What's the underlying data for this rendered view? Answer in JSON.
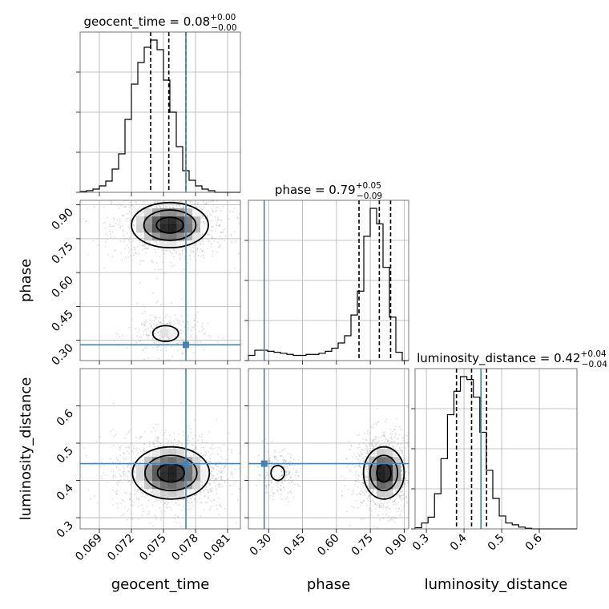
{
  "chart_data": {
    "type": "corner",
    "parameters": [
      "geocent_time",
      "phase",
      "luminosity_distance"
    ],
    "truths": {
      "geocent_time": 0.0771,
      "phase": 0.28,
      "luminosity_distance": 0.445
    },
    "ranges": {
      "geocent_time": [
        0.0672,
        0.0822
      ],
      "phase": [
        0.21,
        0.92
      ],
      "luminosity_distance": [
        0.27,
        0.7
      ]
    },
    "ticks": {
      "geocent_time": [
        0.069,
        0.072,
        0.075,
        0.078,
        0.081
      ],
      "phase": [
        0.3,
        0.45,
        0.6,
        0.75,
        0.9
      ],
      "luminosity_distance": [
        0.3,
        0.4,
        0.5,
        0.6
      ]
    },
    "tick_labels": {
      "geocent_time": [
        "0.069",
        "0.072",
        "0.075",
        "0.078",
        "0.081"
      ],
      "phase": [
        "0.30",
        "0.45",
        "0.60",
        "0.75",
        "0.90"
      ],
      "luminosity_distance_x": [
        "0.3",
        "0.4",
        "0.5",
        "0.6"
      ],
      "luminosity_distance_y": [
        "0.3",
        "0.4",
        "0.5",
        "0.6"
      ]
    },
    "axis_labels": {
      "x": [
        "geocent_time",
        "phase",
        "luminosity_distance"
      ],
      "y": [
        "phase",
        "luminosity_distance"
      ]
    },
    "titles": [
      {
        "param": "geocent_time",
        "prefix": "geocent_time = 0.08",
        "plus": "+0.00",
        "minus": "−0.00"
      },
      {
        "param": "phase",
        "prefix": "phase = 0.79",
        "plus": "+0.05",
        "minus": "−0.09"
      },
      {
        "param": "luminosity_distance",
        "prefix": "luminosity_distance = 0.42",
        "plus": "+0.04",
        "minus": "−0.04"
      }
    ],
    "quantiles": {
      "geocent_time": [
        0.0738,
        0.0755,
        0.0771
      ],
      "phase": [
        0.7,
        0.79,
        0.84
      ],
      "luminosity_distance": [
        0.38,
        0.42,
        0.46
      ]
    },
    "histograms": {
      "geocent_time": {
        "edges": [
          0.0672,
          0.0678,
          0.0684,
          0.069,
          0.0696,
          0.0702,
          0.0708,
          0.0714,
          0.072,
          0.0726,
          0.0732,
          0.0738,
          0.0744,
          0.075,
          0.0756,
          0.0762,
          0.0768,
          0.0774,
          0.078,
          0.0786,
          0.0792,
          0.0798,
          0.0804,
          0.081,
          0.0816,
          0.0822
        ],
        "counts": [
          1,
          2,
          4,
          8,
          14,
          29,
          48,
          91,
          135,
          162,
          181,
          190,
          178,
          140,
          100,
          57,
          27,
          15,
          8,
          4,
          2,
          0,
          0,
          0,
          0
        ]
      },
      "phase": {
        "edges": [
          0.21,
          0.2384,
          0.2668,
          0.2952,
          0.3236,
          0.352,
          0.3804,
          0.4088,
          0.4372,
          0.4656,
          0.494,
          0.5224,
          0.5508,
          0.5792,
          0.6076,
          0.636,
          0.6644,
          0.6928,
          0.7212,
          0.7496,
          0.778,
          0.8064,
          0.8348,
          0.8632,
          0.8916,
          0.92
        ],
        "counts": [
          5,
          10,
          10,
          9,
          8,
          7,
          6,
          5,
          5,
          6,
          6,
          7,
          9,
          12,
          17,
          24,
          44,
          67,
          120,
          147,
          132,
          90,
          42,
          8,
          0
        ]
      },
      "luminosity_distance": {
        "edges": [
          0.27,
          0.2872,
          0.3044,
          0.3216,
          0.3388,
          0.356,
          0.3732,
          0.3904,
          0.4076,
          0.4248,
          0.442,
          0.4592,
          0.4764,
          0.4936,
          0.5108,
          0.528,
          0.5452,
          0.5624,
          0.5796,
          0.5968,
          0.614,
          0.6312,
          0.6484,
          0.6656,
          0.6828,
          0.7
        ],
        "counts": [
          2,
          10,
          20,
          60,
          120,
          195,
          235,
          260,
          255,
          225,
          165,
          100,
          52,
          22,
          10,
          7,
          3,
          1,
          0,
          0,
          0,
          0,
          0,
          0,
          0
        ]
      }
    },
    "density_modes": [
      {
        "pair": [
          "geocent_time",
          "phase"
        ],
        "modes": [
          {
            "x": 0.0756,
            "y": 0.81,
            "sx": 0.0018,
            "sy": 0.05,
            "weight": 0.8
          },
          {
            "x": 0.0752,
            "y": 0.33,
            "sx": 0.0012,
            "sy": 0.035,
            "weight": 0.2
          }
        ]
      },
      {
        "pair": [
          "geocent_time",
          "luminosity_distance"
        ],
        "modes": [
          {
            "x": 0.0757,
            "y": 0.42,
            "sx": 0.0018,
            "sy": 0.035,
            "weight": 1.0
          }
        ]
      },
      {
        "pair": [
          "phase",
          "luminosity_distance"
        ],
        "modes": [
          {
            "x": 0.81,
            "y": 0.42,
            "sx": 0.045,
            "sy": 0.035,
            "weight": 0.82
          },
          {
            "x": 0.34,
            "y": 0.42,
            "sx": 0.03,
            "sy": 0.02,
            "weight": 0.18
          }
        ]
      }
    ],
    "grid": true,
    "legend": "none"
  }
}
